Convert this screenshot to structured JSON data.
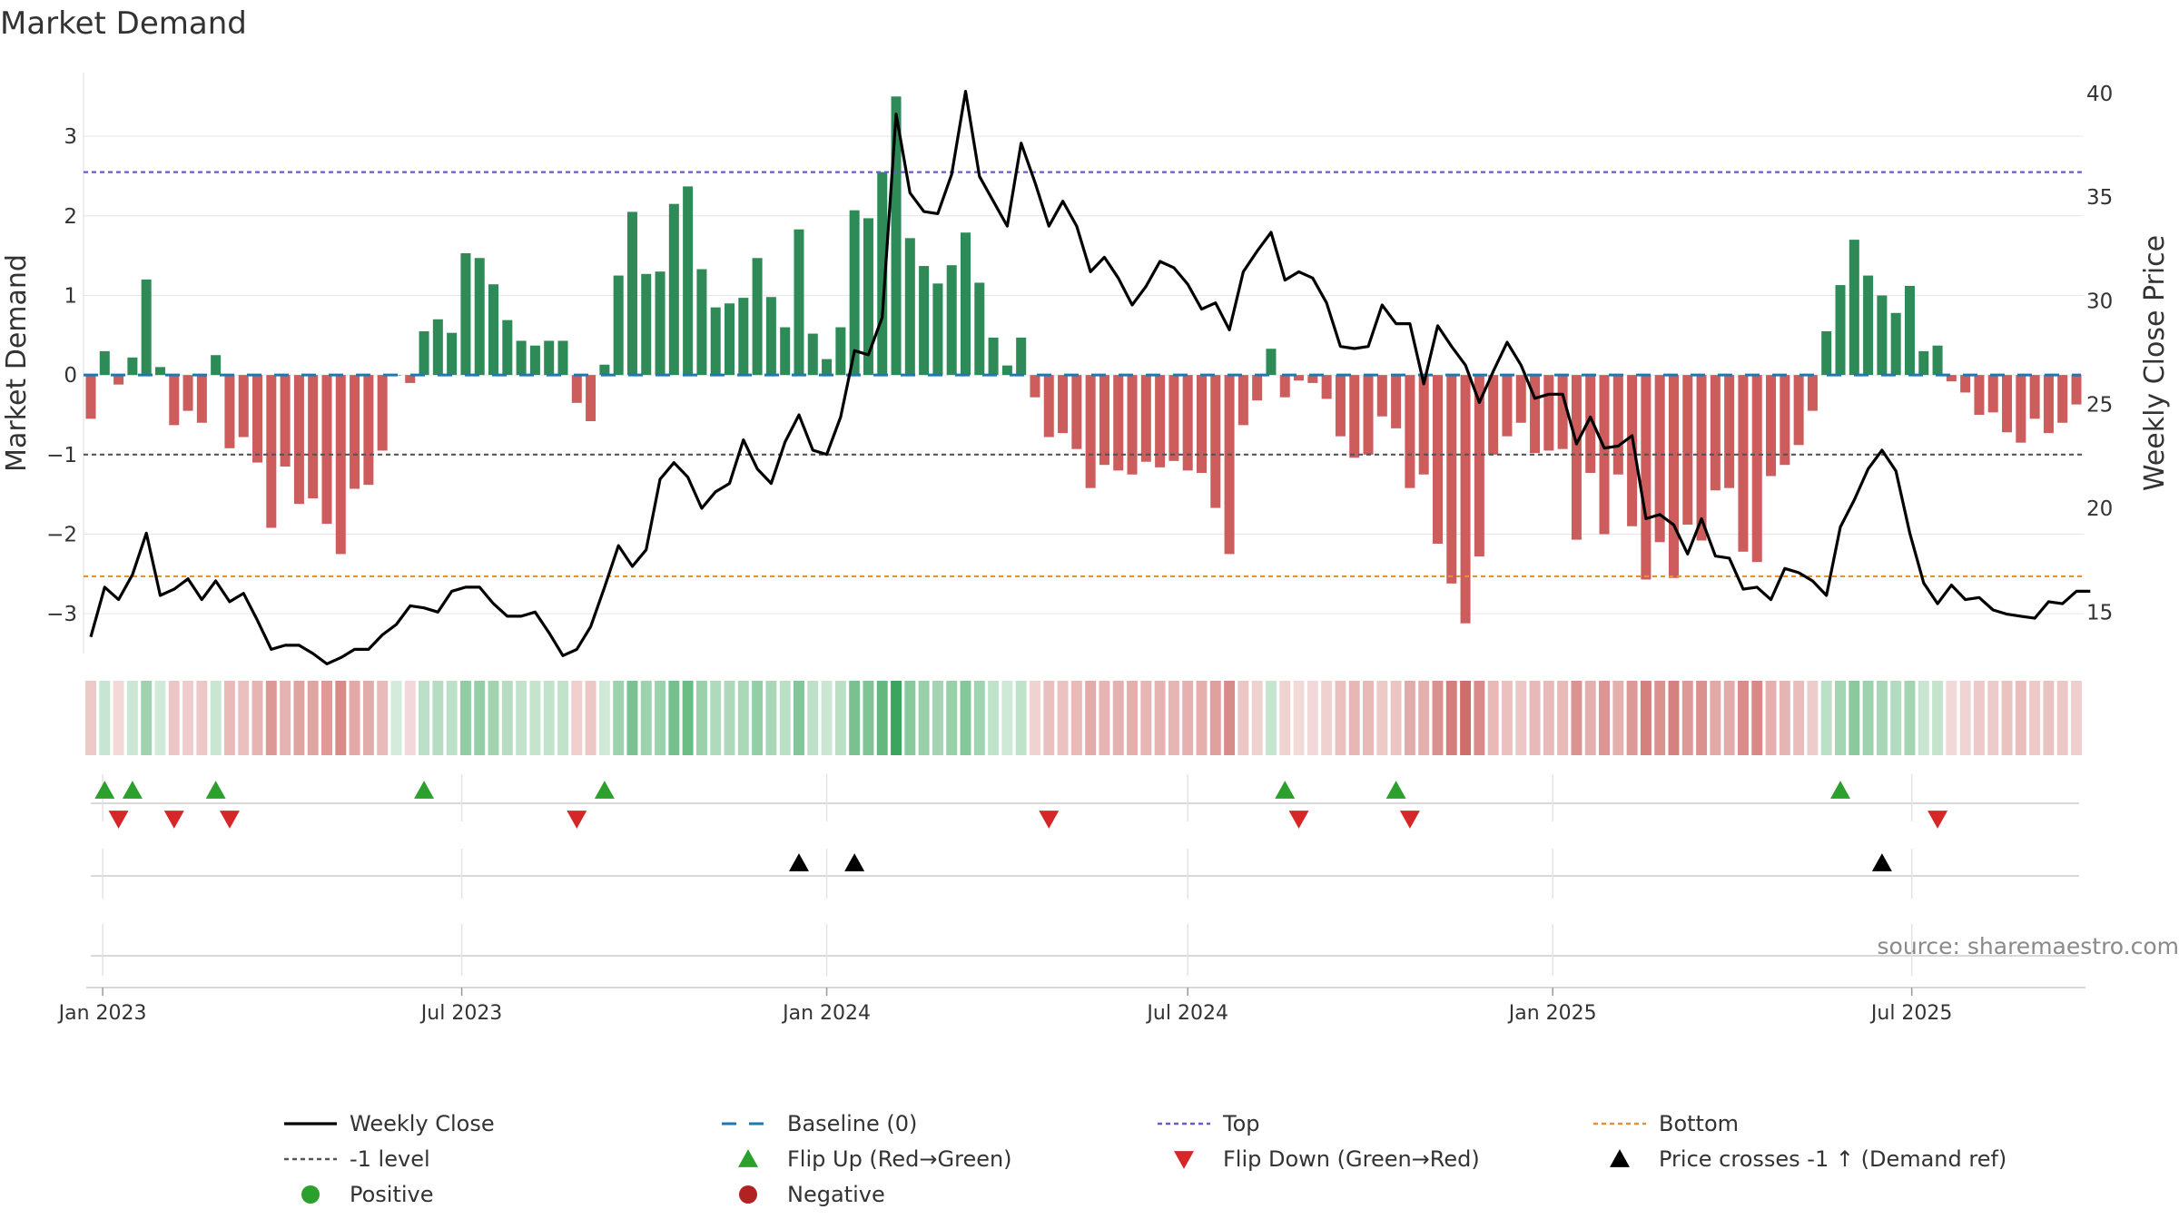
{
  "chart_data": {
    "type": "bar",
    "title": "Market Demand",
    "source": "source: sharemaestro.com",
    "ylabel_left": "Market Demand",
    "ylabel_right": "Weekly Close Price",
    "ylim_left": [
      -3.5,
      3.8
    ],
    "ylim_right": [
      13,
      41
    ],
    "yticks_left": [
      -3,
      -2,
      -1,
      0,
      1,
      2,
      3
    ],
    "yticks_left_labels": [
      "−3",
      "−2",
      "−1",
      "0",
      "1",
      "2",
      "3"
    ],
    "yticks_right": [
      15,
      20,
      25,
      30,
      35,
      40
    ],
    "yticks_right_labels": [
      "15",
      "20",
      "25",
      "30",
      "35",
      "40"
    ],
    "x_start": "2022-12-26",
    "week_days": 7,
    "x_ticks": [
      {
        "date": "2023-01-01",
        "label": "Jan 2023"
      },
      {
        "date": "2023-07-01",
        "label": "Jul 2023"
      },
      {
        "date": "2024-01-01",
        "label": "Jan 2024"
      },
      {
        "date": "2024-07-01",
        "label": "Jul 2024"
      },
      {
        "date": "2025-01-01",
        "label": "Jan 2025"
      },
      {
        "date": "2025-07-01",
        "label": "Jul 2025"
      }
    ],
    "demand": [
      -0.55,
      0.3,
      -0.12,
      0.22,
      1.2,
      0.1,
      -0.63,
      -0.45,
      -0.6,
      0.25,
      -0.92,
      -0.78,
      -1.1,
      -1.92,
      -1.15,
      -1.62,
      -1.55,
      -1.87,
      -2.25,
      -1.43,
      -1.38,
      -0.95,
      0,
      -0.1,
      0.55,
      0.7,
      0.53,
      1.53,
      1.47,
      1.14,
      0.69,
      0.43,
      0.37,
      0.43,
      0.43,
      -0.35,
      -0.58,
      0.13,
      1.25,
      2.05,
      1.27,
      1.3,
      2.15,
      2.37,
      1.33,
      0.85,
      0.9,
      0.97,
      1.47,
      0.98,
      0.6,
      1.83,
      0.52,
      0.2,
      0.6,
      2.07,
      1.97,
      2.55,
      3.5,
      1.72,
      1.37,
      1.15,
      1.38,
      1.79,
      1.16,
      0.47,
      0.12,
      0.47,
      -0.28,
      -0.78,
      -0.73,
      -0.93,
      -1.42,
      -1.13,
      -1.2,
      -1.25,
      -1.09,
      -1.16,
      -1.08,
      -1.2,
      -1.23,
      -1.67,
      -2.25,
      -0.63,
      -0.32,
      0.33,
      -0.28,
      -0.07,
      -0.1,
      -0.3,
      -0.77,
      -1.04,
      -1.0,
      -0.52,
      -0.67,
      -1.42,
      -1.25,
      -2.12,
      -2.62,
      -3.12,
      -2.28,
      -1.0,
      -0.77,
      -0.6,
      -0.98,
      -0.95,
      -0.93,
      -2.07,
      -1.23,
      -2.0,
      -1.25,
      -1.9,
      -2.57,
      -2.1,
      -2.55,
      -1.88,
      -2.08,
      -1.45,
      -1.42,
      -2.22,
      -2.35,
      -1.27,
      -1.13,
      -0.88,
      -0.45,
      0.55,
      1.13,
      1.7,
      1.25,
      1.0,
      0.78,
      1.12,
      0.3,
      0.37,
      -0.08,
      -0.22,
      -0.5,
      -0.47,
      -0.72,
      -0.85,
      -0.55,
      -0.73,
      -0.6,
      -0.37
    ],
    "price": [
      13.8,
      16.2,
      15.6,
      16.8,
      18.8,
      15.8,
      16.1,
      16.6,
      15.6,
      16.5,
      15.5,
      15.9,
      14.6,
      13.2,
      13.4,
      13.4,
      13.0,
      12.5,
      12.8,
      13.2,
      13.2,
      13.9,
      14.4,
      15.3,
      15.2,
      15.0,
      16.0,
      16.2,
      16.2,
      15.4,
      14.8,
      14.8,
      15.0,
      14.0,
      12.9,
      13.2,
      14.3,
      16.2,
      18.2,
      17.2,
      18.0,
      21.4,
      22.2,
      21.5,
      20.0,
      20.8,
      21.2,
      23.3,
      21.9,
      21.2,
      23.2,
      24.5,
      22.8,
      22.6,
      24.4,
      27.6,
      27.4,
      29.2,
      39.0,
      35.2,
      34.3,
      34.2,
      36.1,
      40.1,
      36.0,
      34.8,
      33.6,
      37.6,
      35.7,
      33.6,
      34.8,
      33.6,
      31.4,
      32.1,
      31.1,
      29.8,
      30.7,
      31.9,
      31.6,
      30.8,
      29.6,
      29.9,
      28.6,
      31.4,
      32.4,
      33.3,
      31.0,
      31.4,
      31.1,
      29.9,
      27.8,
      27.7,
      27.8,
      29.8,
      28.9,
      28.9,
      26.0,
      28.8,
      27.8,
      26.9,
      25.1,
      26.6,
      28.0,
      26.9,
      25.3,
      25.5,
      25.5,
      23.1,
      24.4,
      22.9,
      23.0,
      23.5,
      19.5,
      19.7,
      19.2,
      17.8,
      19.5,
      17.7,
      17.6,
      16.1,
      16.2,
      15.6,
      17.1,
      16.9,
      16.5,
      15.8,
      19.1,
      20.4,
      21.9,
      22.8,
      21.8,
      18.8,
      16.4,
      15.4,
      16.3,
      15.6,
      15.7,
      15.1,
      14.9,
      14.8,
      14.7,
      15.5,
      15.4,
      16.0,
      16.0
    ],
    "levels": {
      "top": 2.55,
      "bottom": -2.53,
      "neg_one": -1,
      "baseline": 0
    },
    "flip_up_weeks": [
      1,
      3,
      9,
      24,
      37,
      86,
      94,
      126
    ],
    "flip_down_weeks": [
      2,
      6,
      10,
      35,
      69,
      87,
      95,
      133
    ],
    "price_cross_weeks": [
      51,
      55,
      129
    ],
    "colors": {
      "positive_bar": "#2e8b57",
      "negative_bar": "#cd5c5c",
      "price_line": "#000000",
      "baseline": "#1f77b4",
      "top": "#6a5acd",
      "bottom": "#e69138",
      "neg_one": "#555555",
      "flip_up": "#2ca02c",
      "flip_down": "#d62728",
      "cross": "#000000",
      "positive_dot": "#2ca02c",
      "negative_dot": "#b22222"
    },
    "legend": [
      {
        "key": "weekly_close",
        "label": "Weekly Close",
        "style": "line"
      },
      {
        "key": "baseline",
        "label": "Baseline (0)",
        "style": "dash"
      },
      {
        "key": "top",
        "label": "Top",
        "style": "dots"
      },
      {
        "key": "bottom",
        "label": "Bottom",
        "style": "dots"
      },
      {
        "key": "neg_one",
        "label": "-1 level",
        "style": "dots"
      },
      {
        "key": "flip_up",
        "label": "Flip Up (Red→Green)",
        "style": "triangle-up"
      },
      {
        "key": "flip_down",
        "label": "Flip Down (Green→Red)",
        "style": "triangle-down"
      },
      {
        "key": "cross",
        "label": "Price crosses -1 ↑ (Demand ref)",
        "style": "triangle-up"
      },
      {
        "key": "positive_dot",
        "label": "Positive",
        "style": "circle"
      },
      {
        "key": "negative_dot",
        "label": "Negative",
        "style": "circle"
      }
    ]
  }
}
